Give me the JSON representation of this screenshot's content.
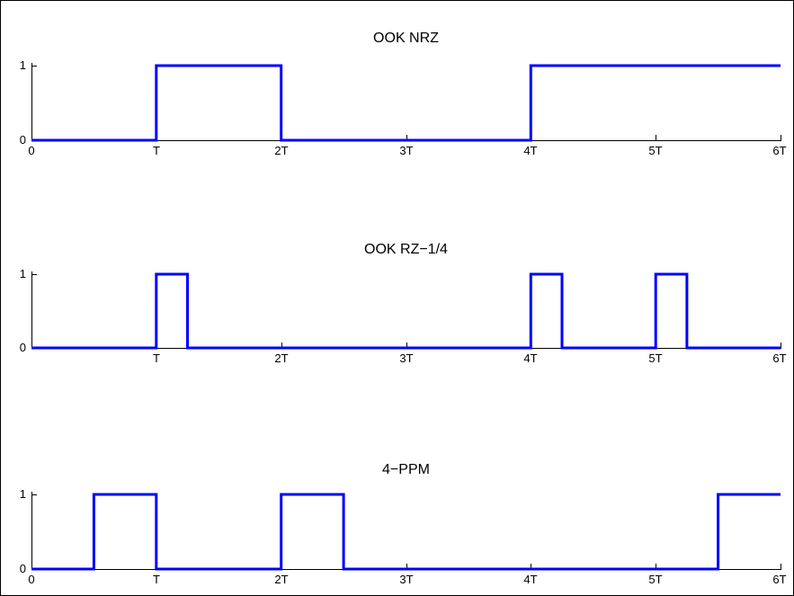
{
  "figure": {
    "background": "#ffffff",
    "frame_color": "#000000"
  },
  "chart_data": [
    {
      "type": "line",
      "step": true,
      "title": "OOK NRZ",
      "xlim": [
        0,
        6
      ],
      "ylim": [
        0,
        1
      ],
      "x_ticks": [
        0,
        1,
        2,
        3,
        4,
        5,
        6
      ],
      "x_tick_labels": [
        "0",
        "T",
        "2T",
        "3T",
        "4T",
        "5T",
        "6T"
      ],
      "y_ticks": [
        0,
        1
      ],
      "y_tick_labels": [
        "0",
        "1"
      ],
      "grid": false,
      "series": [
        {
          "color": "#0000ff",
          "x": [
            0,
            1,
            1,
            2,
            2,
            4,
            4,
            6
          ],
          "y": [
            0,
            0,
            1,
            1,
            0,
            0,
            1,
            1
          ]
        }
      ]
    },
    {
      "type": "line",
      "step": true,
      "title": "OOK RZ−1/4",
      "xlim": [
        0,
        6
      ],
      "ylim": [
        0,
        1
      ],
      "x_ticks": [
        1,
        2,
        3,
        4,
        5,
        6
      ],
      "x_tick_labels": [
        "T",
        "2T",
        "3T",
        "4T",
        "5T",
        "6T"
      ],
      "y_ticks": [
        0,
        1
      ],
      "y_tick_labels": [
        "0",
        "1"
      ],
      "grid": false,
      "series": [
        {
          "color": "#0000ff",
          "x": [
            0,
            1,
            1,
            1.25,
            1.25,
            4,
            4,
            4.25,
            4.25,
            5,
            5,
            5.25,
            5.25,
            6
          ],
          "y": [
            0,
            0,
            1,
            1,
            0,
            0,
            1,
            1,
            0,
            0,
            1,
            1,
            0,
            0
          ]
        }
      ]
    },
    {
      "type": "line",
      "step": true,
      "title": "4−PPM",
      "xlim": [
        0,
        6
      ],
      "ylim": [
        0,
        1
      ],
      "x_ticks": [
        0,
        1,
        2,
        3,
        4,
        5,
        6
      ],
      "x_tick_labels": [
        "0",
        "T",
        "2T",
        "3T",
        "4T",
        "5T",
        "6T"
      ],
      "y_ticks": [
        0,
        1
      ],
      "y_tick_labels": [
        "0",
        "1"
      ],
      "grid": false,
      "series": [
        {
          "color": "#0000ff",
          "x": [
            0,
            0.5,
            0.5,
            1,
            1,
            2,
            2,
            2.5,
            2.5,
            5.5,
            5.5,
            6
          ],
          "y": [
            0,
            0,
            1,
            1,
            0,
            0,
            1,
            1,
            0,
            0,
            1,
            1
          ]
        }
      ]
    }
  ]
}
